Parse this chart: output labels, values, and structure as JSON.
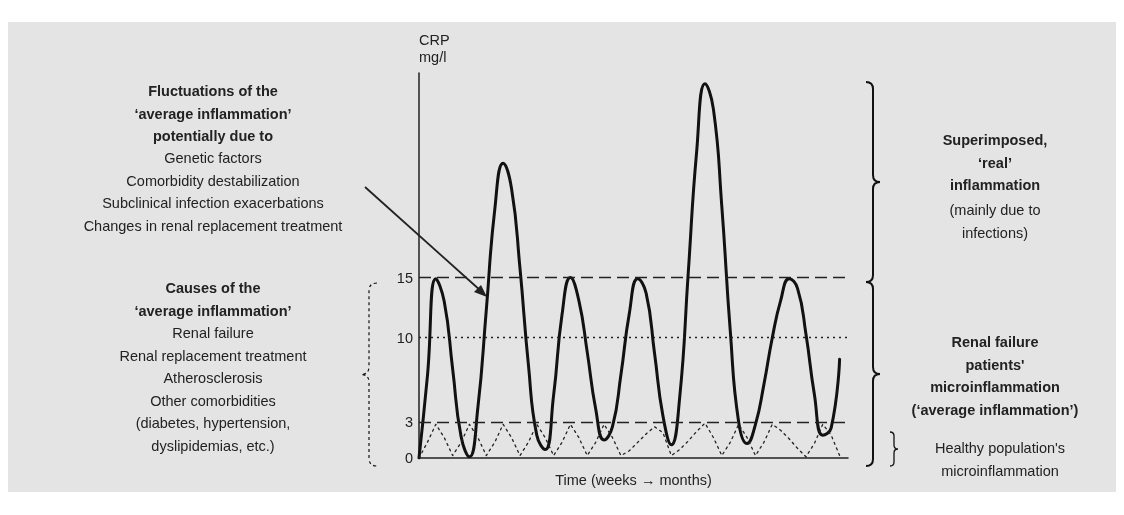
{
  "chart_data": {
    "type": "line",
    "xlabel": "Time (weeks → months)",
    "ylabel": "CRP\nmg/l",
    "categories": [
      null,
      null,
      null,
      null,
      null,
      null,
      null,
      null,
      null,
      null,
      null,
      null,
      null,
      null,
      null,
      null,
      null,
      null,
      null,
      null,
      null,
      null,
      null,
      null,
      null,
      null,
      null,
      null,
      null,
      null,
      null,
      null,
      null,
      null,
      null,
      null,
      null,
      null,
      null,
      null,
      null,
      null,
      null,
      null,
      null,
      null,
      null,
      null,
      null,
      null,
      null,
      null
    ],
    "series": [
      {
        "color": "#111111",
        "line_style": "solid",
        "values": [
          0,
          6.8,
          14.9,
          13.0,
          7.4,
          1.8,
          0.1,
          4.2,
          12.3,
          20.6,
          24.5,
          22.4,
          15.8,
          7.8,
          1.9,
          0.7,
          5.2,
          11.9,
          15,
          13.1,
          8.8,
          4.1,
          1.5,
          2.6,
          6.9,
          12.0,
          14.9,
          13.7,
          8.7,
          3.5,
          1.1,
          5.1,
          15.3,
          25.4,
          31.1,
          29.0,
          20.9,
          10.6,
          3.0,
          1.2,
          2.8,
          6.1,
          10.0,
          13.1,
          14.9,
          14.1,
          10.3,
          5.3,
          1.9,
          2.5,
          8.2,
          null
        ]
      },
      {
        "color": "#222222",
        "line_style": "dotted",
        "values": [
          0,
          1.3,
          2.8,
          1.7,
          0.2,
          1.3,
          2.8,
          1.7,
          0.2,
          1.3,
          2.8,
          1.7,
          0.2,
          1.3,
          2.8,
          1.7,
          0.2,
          1.3,
          2.8,
          1.7,
          0.2,
          1.3,
          2.8,
          1.7,
          0.2,
          0.6,
          1.3,
          2.0,
          2.6,
          2.1,
          0.2,
          0.7,
          1.4,
          2.2,
          2.9,
          1.7,
          0.2,
          1.3,
          2.8,
          1.7,
          0.2,
          1.3,
          2.8,
          2.3,
          1.6,
          0.8,
          0.1,
          1.2,
          2.8,
          1.9,
          0.2,
          null
        ]
      }
    ],
    "ylim": [
      0,
      32
    ],
    "yticks": [
      0,
      3,
      10,
      15
    ],
    "tick_labels": "y",
    "grid": false,
    "ref_lines": [
      {
        "axis": "y",
        "value": 15,
        "color": "#222222",
        "line_style": "dashed"
      },
      {
        "axis": "y",
        "value": 10,
        "color": "#222222",
        "line_style": "dotted"
      },
      {
        "axis": "y",
        "value": 3,
        "color": "#222222",
        "line_style": "dashed"
      }
    ],
    "annotations": [
      "Fluctuations of the\n‘average inflammation’\npotentially due to",
      "Genetic factors\nComorbidity destabilization\nSubclinical infection exacerbations\nChanges in renal replacement treatment",
      "Causes of the\n‘average inflammation’",
      "Renal failure\nRenal replacement treatment\nAtherosclerosis\nOther comorbidities\n(diabetes, hypertension,\ndyslipidemias, etc.)",
      "Superimposed,\n‘real’\ninflammation",
      "(mainly due to\ninfections)",
      "Renal failure\npatients'\nmicroinflammation\n(‘average inflammation’)",
      "Healthy population's\nmicroinflammation"
    ]
  }
}
